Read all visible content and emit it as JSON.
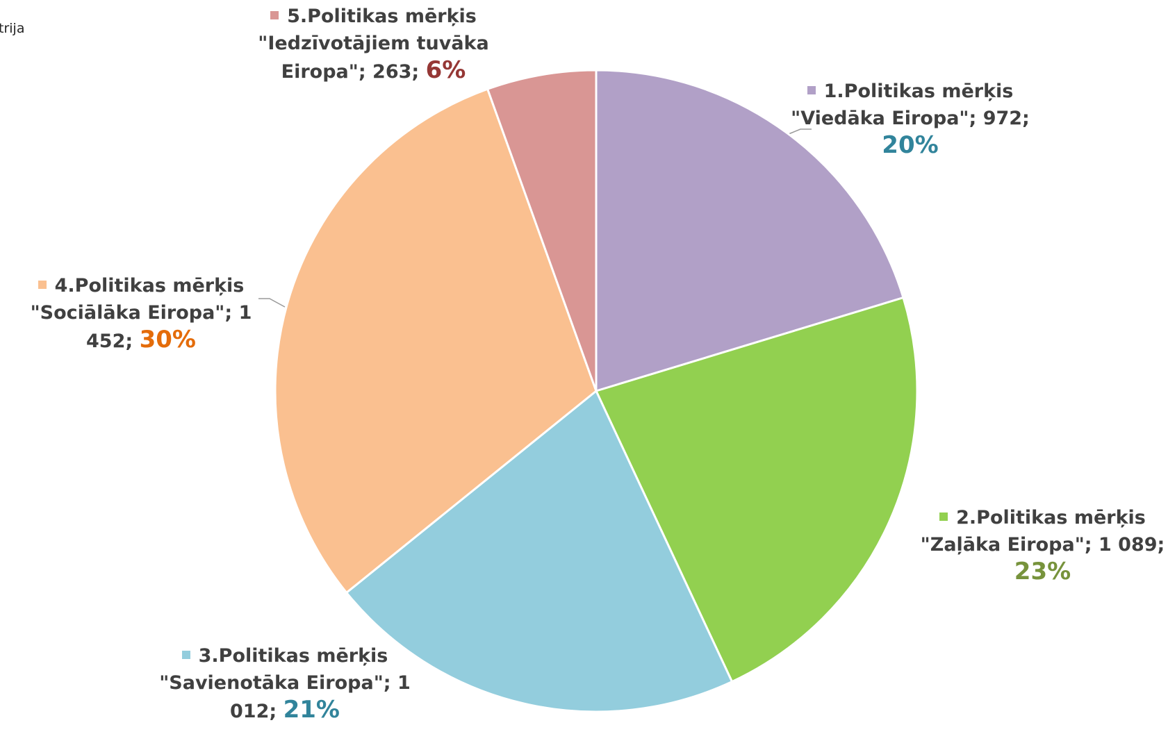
{
  "chart_data": {
    "type": "pie",
    "legend_fragment": "trija",
    "categories": [
      "1.Politikas mērķis \"Viedāka Eiropa\";",
      "2.Politikas mērķis \"Zaļāka Eiropa\";",
      "3.Politikas mērķis \"Savienotāka Eiropa\";",
      "4.Politikas mērķis \"Sociālāka Eiropa\";",
      "5.Politikas mērķis \"Iedzīvotājiem tuvāka Eiropa\";"
    ],
    "values": [
      972,
      1089,
      1012,
      1452,
      263
    ],
    "value_labels": [
      "972;",
      "1 089;",
      "1 012;",
      "1 452;",
      "263;"
    ],
    "percent_labels": [
      "20%",
      "23%",
      "21%",
      "30%",
      "6%"
    ],
    "colors": [
      "#b1a0c7",
      "#92d050",
      "#93cddd",
      "#fac090",
      "#d99694"
    ],
    "percent_colors": [
      "#31849b",
      "#77933c",
      "#31849b",
      "#e46c0a",
      "#953735"
    ]
  }
}
